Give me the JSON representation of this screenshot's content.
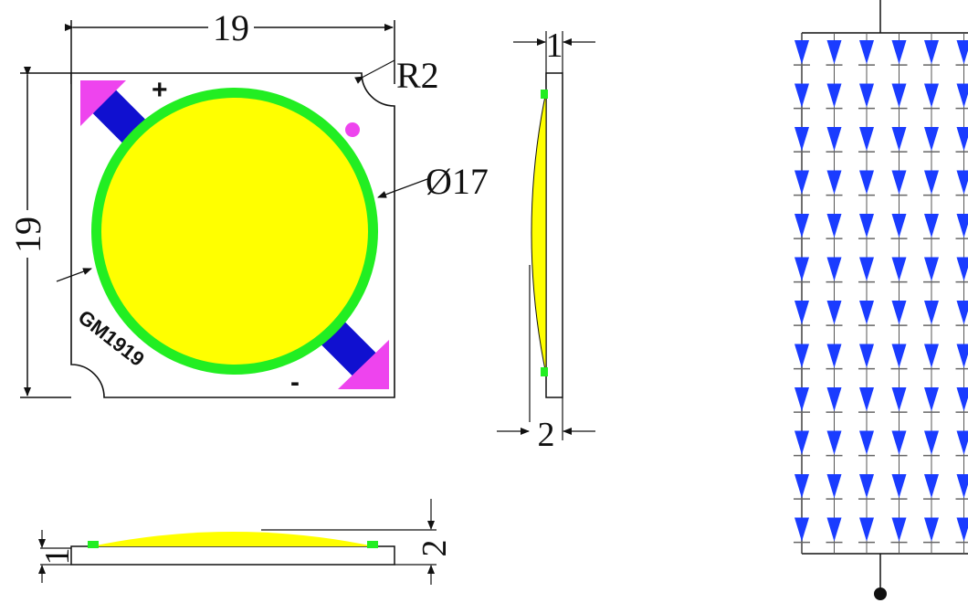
{
  "front_view": {
    "width_label": "19",
    "height_label": "19",
    "corner_radius_label": "R2",
    "diameter_label": "Ø17",
    "plus_label": "+",
    "minus_label": "-",
    "model_label": "GM1919"
  },
  "side_view": {
    "top_thickness_label": "1",
    "bottom_thickness_label": "2"
  },
  "bottom_view": {
    "thin_thickness_label": "1",
    "total_thickness_label": "2"
  },
  "circuit": {
    "led_columns_visible": 6,
    "led_rows": 12
  },
  "colors": {
    "phosphor": "#ffff00",
    "ring": "#22ee22",
    "pad": "#1010d0",
    "triangle": "#ee44ee",
    "led": "#1a3cff",
    "line": "#111111"
  }
}
